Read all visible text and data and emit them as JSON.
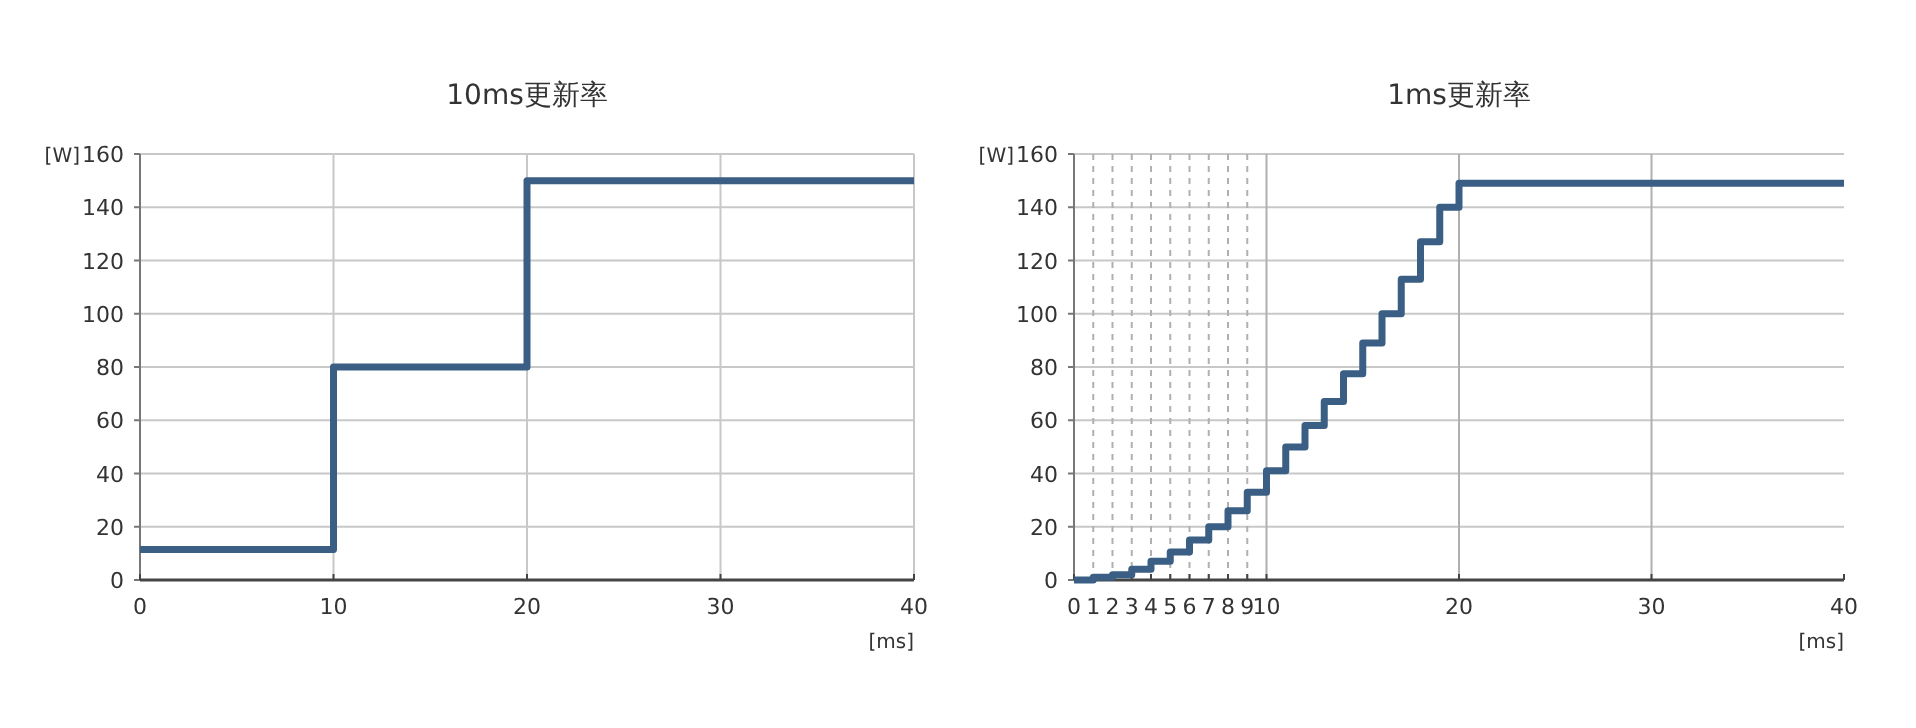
{
  "chart_data": [
    {
      "type": "step",
      "title": "10ms更新率",
      "xlabel": "[ms]",
      "ylabel": "[W]",
      "x": [
        0,
        10,
        20,
        40
      ],
      "series": [
        {
          "color": "#3b5f84",
          "values": [
            11.5,
            80,
            150,
            150
          ]
        }
      ],
      "xlim": [
        0,
        40
      ],
      "ylim": [
        0,
        160
      ],
      "xticks": [
        0,
        10,
        20,
        30,
        40
      ],
      "yticks": [
        0,
        20,
        40,
        60,
        80,
        100,
        120,
        140,
        160
      ],
      "grid": true
    },
    {
      "type": "step",
      "title": "1ms更新率",
      "xlabel": "[ms]",
      "ylabel": "[W]",
      "x": [
        0,
        1,
        2,
        3,
        4,
        5,
        6,
        7,
        8,
        9,
        10,
        11,
        12,
        13,
        14,
        15,
        16,
        17,
        18,
        19,
        20,
        40
      ],
      "series": [
        {
          "color": "#3b5f84",
          "values": [
            0,
            1,
            2,
            4,
            7,
            10.5,
            15,
            20,
            26,
            33,
            41,
            50,
            58,
            67,
            77.5,
            89,
            100,
            113,
            127,
            140,
            149,
            149
          ]
        }
      ],
      "xlim": [
        0,
        40
      ],
      "ylim": [
        0,
        160
      ],
      "xticks": [
        0,
        1,
        2,
        3,
        4,
        5,
        6,
        7,
        8,
        9,
        10,
        20,
        30,
        40
      ],
      "yticks": [
        0,
        20,
        40,
        60,
        80,
        100,
        120,
        140,
        160
      ],
      "grid": "y",
      "ref_lines": [
        {
          "axis": "x",
          "value": 1,
          "line_style": "dashed"
        },
        {
          "axis": "x",
          "value": 2,
          "line_style": "dashed"
        },
        {
          "axis": "x",
          "value": 3,
          "line_style": "dashed"
        },
        {
          "axis": "x",
          "value": 4,
          "line_style": "dashed"
        },
        {
          "axis": "x",
          "value": 5,
          "line_style": "dashed"
        },
        {
          "axis": "x",
          "value": 6,
          "line_style": "dashed"
        },
        {
          "axis": "x",
          "value": 7,
          "line_style": "dashed"
        },
        {
          "axis": "x",
          "value": 8,
          "line_style": "dashed"
        },
        {
          "axis": "x",
          "value": 9,
          "line_style": "dashed"
        },
        {
          "axis": "x",
          "value": 10,
          "line_style": "solid"
        },
        {
          "axis": "x",
          "value": 20,
          "line_style": "solid"
        },
        {
          "axis": "x",
          "value": 30,
          "line_style": "solid"
        }
      ]
    }
  ]
}
